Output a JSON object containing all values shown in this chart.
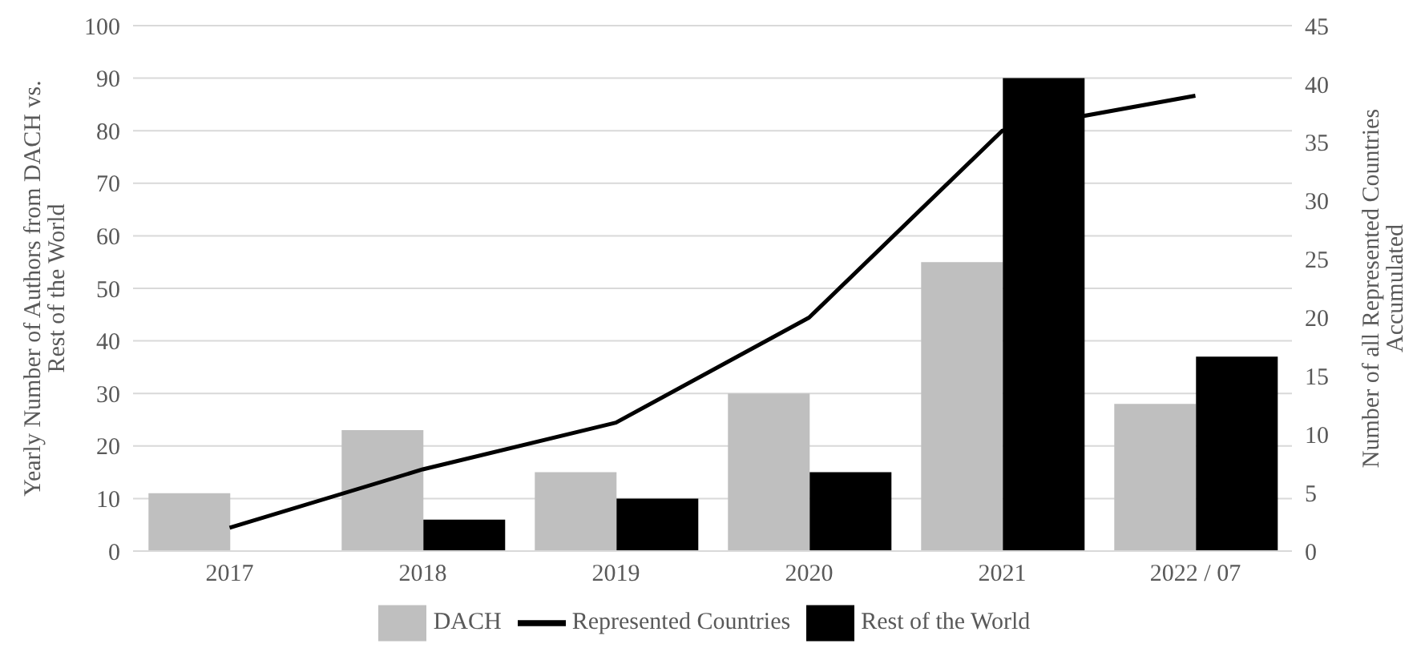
{
  "chart_data": {
    "type": "bar",
    "categories": [
      "2017",
      "2018",
      "2019",
      "2020",
      "2021",
      "2022 / 07"
    ],
    "ylabel": "Yearly Number of Authors from DACH vs. Rest of the World",
    "y2label": "Number of all Represented Countries Accumulated",
    "series": [
      {
        "name": "DACH",
        "color": "#bfbfbf",
        "values": [
          11,
          23,
          15,
          30,
          55,
          28
        ]
      },
      {
        "name": "Rest of the World",
        "color": "#000000",
        "values": [
          0,
          6,
          10,
          15,
          90,
          37
        ]
      },
      {
        "name": "Represented Countries",
        "type": "line",
        "axis": "y2",
        "color": "#000000",
        "values": [
          2,
          7,
          11,
          20,
          36,
          39
        ]
      }
    ],
    "ylim": [
      0,
      100
    ],
    "yticks": [
      0,
      10,
      20,
      30,
      40,
      50,
      60,
      70,
      80,
      90,
      100
    ],
    "y2lim": [
      0,
      45
    ],
    "y2ticks": [
      0,
      5,
      10,
      15,
      20,
      25,
      30,
      35,
      40,
      45
    ],
    "grid": "y",
    "legend": "bottom",
    "marker": "none",
    "line_style": "solid"
  }
}
